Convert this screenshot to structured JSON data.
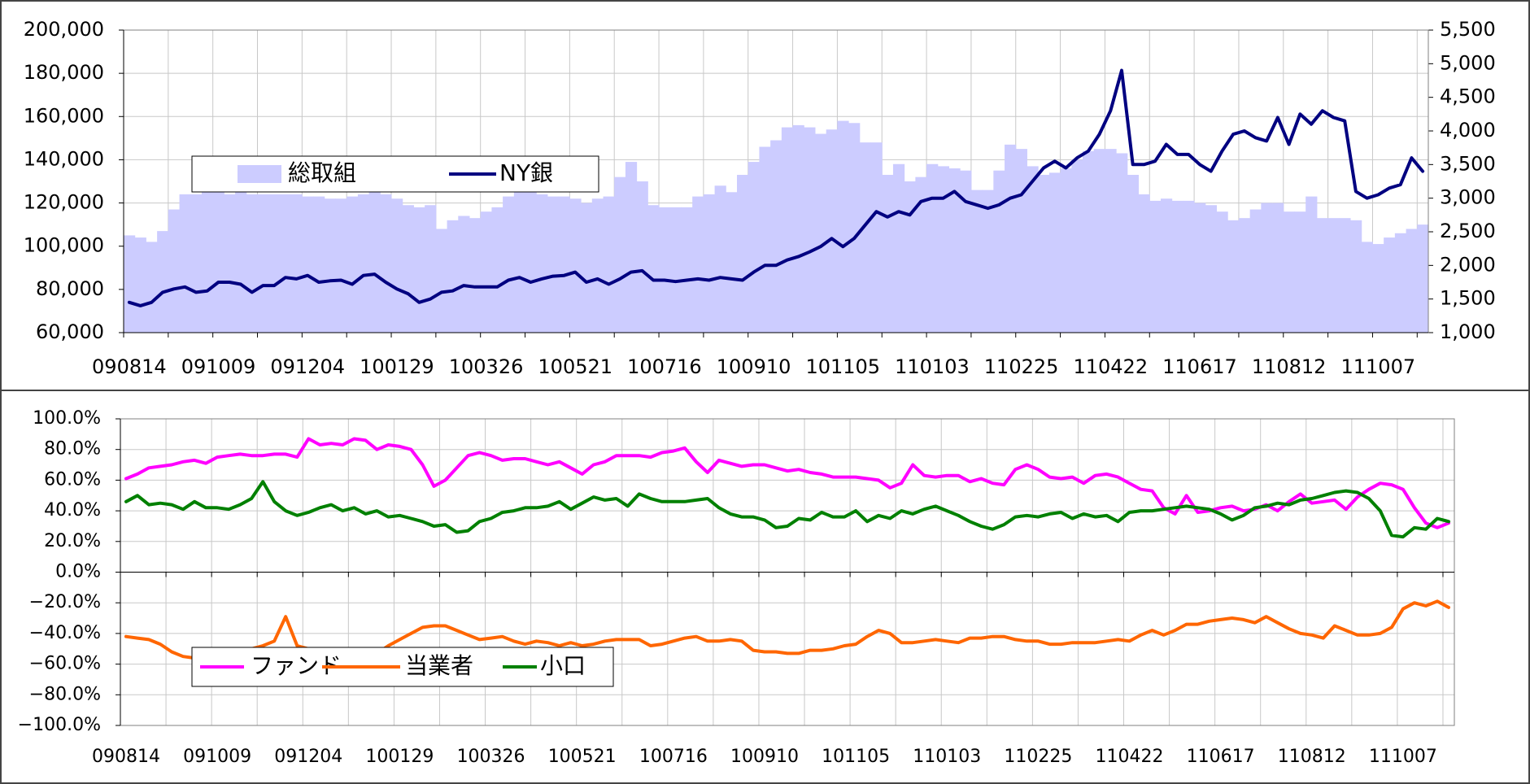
{
  "chart_data": [
    {
      "type": "bar_line",
      "categories": [
        "090814",
        null,
        null,
        null,
        null,
        null,
        null,
        null,
        "091009",
        null,
        null,
        null,
        null,
        null,
        null,
        null,
        "091204",
        null,
        null,
        null,
        null,
        null,
        null,
        null,
        "100129",
        null,
        null,
        null,
        null,
        null,
        null,
        null,
        "100326",
        null,
        null,
        null,
        null,
        null,
        null,
        null,
        "100521",
        null,
        null,
        null,
        null,
        null,
        null,
        null,
        "100716",
        null,
        null,
        null,
        null,
        null,
        null,
        null,
        "100910",
        null,
        null,
        null,
        null,
        null,
        null,
        null,
        "101105",
        null,
        null,
        null,
        null,
        null,
        null,
        null,
        "110103",
        null,
        null,
        null,
        null,
        null,
        null,
        null,
        "110225",
        null,
        null,
        null,
        null,
        null,
        null,
        null,
        "110422",
        null,
        null,
        null,
        null,
        null,
        null,
        null,
        "110617",
        null,
        null,
        null,
        null,
        null,
        null,
        null,
        "110812",
        null,
        null,
        null,
        null,
        null,
        null,
        null,
        "111007",
        null,
        null,
        null,
        null
      ],
      "series": [
        {
          "name": "総取組",
          "type": "bar",
          "color": "#ccccff",
          "values": [
            105000,
            104000,
            102000,
            107000,
            117000,
            124000,
            124000,
            125000,
            125000,
            124000,
            125000,
            124000,
            124000,
            124000,
            124000,
            124000,
            123000,
            123000,
            122000,
            122000,
            123000,
            124000,
            126000,
            124000,
            122000,
            119000,
            118000,
            119000,
            108000,
            112000,
            114000,
            113000,
            116000,
            118000,
            123000,
            125000,
            125000,
            124000,
            123000,
            123000,
            122000,
            120000,
            122000,
            123000,
            132000,
            139000,
            130000,
            119000,
            118000,
            118000,
            118000,
            123000,
            124000,
            128000,
            125000,
            133000,
            139000,
            146000,
            149000,
            155000,
            156000,
            155000,
            152000,
            154000,
            158000,
            157000,
            148000,
            148000,
            133000,
            138000,
            130000,
            132000,
            138000,
            137000,
            136000,
            135000,
            126000,
            126000,
            135000,
            147000,
            145000,
            137000,
            133000,
            134000,
            136000,
            140000,
            144000,
            145000,
            145000,
            143000,
            133000,
            124000,
            121000,
            122000,
            121000,
            121000,
            120000,
            119000,
            116000,
            112000,
            113000,
            117000,
            120000,
            120000,
            116000,
            116000,
            123000,
            113000,
            113000,
            113000,
            112000,
            102000,
            101000,
            104000,
            106000,
            108000,
            110000
          ]
        },
        {
          "name": "NY銀",
          "type": "line",
          "axis": "y2",
          "color": "#000080",
          "values": [
            1450,
            1400,
            1450,
            1600,
            1650,
            1680,
            1600,
            1620,
            1750,
            1750,
            1720,
            1600,
            1700,
            1700,
            1820,
            1800,
            1850,
            1750,
            1770,
            1780,
            1720,
            1850,
            1870,
            1750,
            1650,
            1580,
            1450,
            1500,
            1600,
            1620,
            1700,
            1680,
            1680,
            1680,
            1780,
            1820,
            1750,
            1800,
            1840,
            1850,
            1900,
            1750,
            1800,
            1720,
            1800,
            1900,
            1920,
            1780,
            1780,
            1760,
            1780,
            1800,
            1780,
            1820,
            1800,
            1780,
            1900,
            2000,
            2000,
            2080,
            2130,
            2200,
            2280,
            2400,
            2280,
            2400,
            2600,
            2800,
            2720,
            2800,
            2750,
            2950,
            3000,
            3000,
            3100,
            2950,
            2900,
            2850,
            2900,
            3000,
            3050,
            3250,
            3450,
            3550,
            3450,
            3600,
            3700,
            3950,
            4300,
            4900,
            3500,
            3500,
            3550,
            3800,
            3650,
            3650,
            3500,
            3400,
            3700,
            3950,
            4000,
            3900,
            3850,
            4200,
            3800,
            4250,
            4100,
            4300,
            4200,
            4150,
            3100,
            3000,
            3050,
            3150,
            3200,
            3600,
            3400
          ]
        }
      ],
      "ylim": [
        60000,
        200000
      ],
      "yticks": [
        {
          "value": 60000,
          "label": "60,000"
        },
        {
          "value": 80000,
          "label": "80,000"
        },
        {
          "value": 100000,
          "label": "100,000"
        },
        {
          "value": 120000,
          "label": "120,000"
        },
        {
          "value": 140000,
          "label": "140,000"
        },
        {
          "value": 160000,
          "label": "160,000"
        },
        {
          "value": 180000,
          "label": "180,000"
        },
        {
          "value": 200000,
          "label": "200,000"
        }
      ],
      "y2lim": [
        1000,
        5500
      ],
      "y2ticks": [
        {
          "value": 1000,
          "label": "1,000"
        },
        {
          "value": 1500,
          "label": "1,500"
        },
        {
          "value": 2000,
          "label": "2,000"
        },
        {
          "value": 2500,
          "label": "2,500"
        },
        {
          "value": 3000,
          "label": "3,000"
        },
        {
          "value": 3500,
          "label": "3,500"
        },
        {
          "value": 4000,
          "label": "4,000"
        },
        {
          "value": 4500,
          "label": "4,500"
        },
        {
          "value": 5000,
          "label": "5,000"
        },
        {
          "value": 5500,
          "label": "5,500"
        }
      ],
      "grid": true
    },
    {
      "type": "line",
      "categories": [
        "090814",
        null,
        null,
        null,
        null,
        null,
        null,
        null,
        "091009",
        null,
        null,
        null,
        null,
        null,
        null,
        null,
        "091204",
        null,
        null,
        null,
        null,
        null,
        null,
        null,
        "100129",
        null,
        null,
        null,
        null,
        null,
        null,
        null,
        "100326",
        null,
        null,
        null,
        null,
        null,
        null,
        null,
        "100521",
        null,
        null,
        null,
        null,
        null,
        null,
        null,
        "100716",
        null,
        null,
        null,
        null,
        null,
        null,
        null,
        "100910",
        null,
        null,
        null,
        null,
        null,
        null,
        null,
        "101105",
        null,
        null,
        null,
        null,
        null,
        null,
        null,
        "110103",
        null,
        null,
        null,
        null,
        null,
        null,
        null,
        "110225",
        null,
        null,
        null,
        null,
        null,
        null,
        null,
        "110422",
        null,
        null,
        null,
        null,
        null,
        null,
        null,
        "110617",
        null,
        null,
        null,
        null,
        null,
        null,
        null,
        "110812",
        null,
        null,
        null,
        null,
        null,
        null,
        null,
        "111007",
        null,
        null,
        null,
        null
      ],
      "series": [
        {
          "name": "ファンド",
          "color": "#ff00ff",
          "values": [
            61,
            64,
            68,
            69,
            70,
            72,
            73,
            71,
            75,
            76,
            77,
            76,
            76,
            77,
            77,
            75,
            87,
            83,
            84,
            83,
            87,
            86,
            80,
            83,
            82,
            80,
            70,
            56,
            60,
            68,
            76,
            78,
            76,
            73,
            74,
            74,
            72,
            70,
            72,
            68,
            64,
            70,
            72,
            76,
            76,
            76,
            75,
            78,
            79,
            81,
            72,
            65,
            73,
            71,
            69,
            70,
            70,
            68,
            66,
            67,
            65,
            64,
            62,
            62,
            62,
            61,
            60,
            55,
            58,
            70,
            63,
            62,
            63,
            63,
            59,
            61,
            58,
            57,
            67,
            70,
            67,
            62,
            61,
            62,
            58,
            63,
            64,
            62,
            58,
            54,
            53,
            42,
            38,
            50,
            39,
            40,
            42,
            43,
            40,
            41,
            44,
            40,
            46,
            51,
            45,
            46,
            47,
            41,
            49,
            54,
            58,
            57,
            54,
            42,
            32,
            29,
            32
          ]
        },
        {
          "name": "当業者",
          "color": "#ff6600",
          "values": [
            -42,
            -43,
            -44,
            -47,
            -52,
            -55,
            -56,
            -56,
            -55,
            -56,
            -55,
            -50,
            -48,
            -45,
            -29,
            -48,
            -50,
            -52,
            -55,
            -57,
            -58,
            -56,
            -53,
            -48,
            -44,
            -40,
            -36,
            -35,
            -35,
            -38,
            -41,
            -44,
            -43,
            -42,
            -45,
            -47,
            -45,
            -46,
            -48,
            -46,
            -48,
            -47,
            -45,
            -44,
            -44,
            -44,
            -48,
            -47,
            -45,
            -43,
            -42,
            -45,
            -45,
            -44,
            -45,
            -51,
            -52,
            -52,
            -53,
            -53,
            -51,
            -51,
            -50,
            -48,
            -47,
            -42,
            -38,
            -40,
            -46,
            -46,
            -45,
            -44,
            -45,
            -46,
            -43,
            -43,
            -42,
            -42,
            -44,
            -45,
            -45,
            -47,
            -47,
            -46,
            -46,
            -46,
            -45,
            -44,
            -45,
            -41,
            -38,
            -41,
            -38,
            -34,
            -34,
            -32,
            -31,
            -30,
            -31,
            -33,
            -29,
            -33,
            -37,
            -40,
            -41,
            -43,
            -35,
            -38,
            -41,
            -41,
            -40,
            -36,
            -24,
            -20,
            -22,
            -19,
            -23
          ]
        },
        {
          "name": "小口",
          "color": "#008000",
          "values": [
            46,
            50,
            44,
            45,
            44,
            41,
            46,
            42,
            42,
            41,
            44,
            48,
            59,
            46,
            40,
            37,
            39,
            42,
            44,
            40,
            42,
            38,
            40,
            36,
            37,
            35,
            33,
            30,
            31,
            26,
            27,
            33,
            35,
            39,
            40,
            42,
            42,
            43,
            46,
            41,
            45,
            49,
            47,
            48,
            43,
            51,
            48,
            46,
            46,
            46,
            47,
            48,
            42,
            38,
            36,
            36,
            34,
            29,
            30,
            35,
            34,
            39,
            36,
            36,
            40,
            33,
            37,
            35,
            40,
            38,
            41,
            43,
            40,
            37,
            33,
            30,
            28,
            31,
            36,
            37,
            36,
            38,
            39,
            35,
            38,
            36,
            37,
            33,
            39,
            40,
            40,
            41,
            42,
            43,
            42,
            41,
            38,
            34,
            37,
            42,
            43,
            45,
            44,
            47,
            48,
            50,
            52,
            53,
            52,
            48,
            40,
            24,
            23,
            29,
            28,
            35,
            33
          ]
        }
      ],
      "ylim": [
        -100,
        100
      ],
      "yticks": [
        {
          "value": -100,
          "label": "−100.0%"
        },
        {
          "value": -80,
          "label": "−80.0%"
        },
        {
          "value": -60,
          "label": "−60.0%"
        },
        {
          "value": -40,
          "label": "−40.0%"
        },
        {
          "value": -20,
          "label": "−20.0%"
        },
        {
          "value": 0,
          "label": "0.0%"
        },
        {
          "value": 20,
          "label": "20.0%"
        },
        {
          "value": 40,
          "label": "40.0%"
        },
        {
          "value": 60,
          "label": "60.0%"
        },
        {
          "value": 80,
          "label": "80.0%"
        },
        {
          "value": 100,
          "label": "100.0%"
        }
      ],
      "grid": true
    }
  ]
}
